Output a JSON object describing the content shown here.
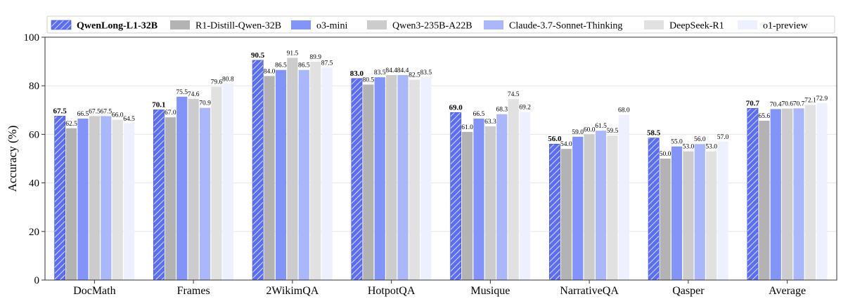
{
  "chart_data": {
    "type": "bar",
    "title": "",
    "xlabel": "",
    "ylabel": "Accuracy (%)",
    "ylim": [
      0,
      100
    ],
    "yticks": [
      "0",
      "20",
      "40",
      "60",
      "80",
      "100"
    ],
    "grid": "horizontal",
    "legend_position": "top",
    "categories": [
      "DocMath",
      "Frames",
      "2WikimQA",
      "HotpotQA",
      "Musique",
      "NarrativeQA",
      "Qasper",
      "Average"
    ],
    "series": [
      {
        "name": "QwenLong-L1-32B",
        "color": "#5b6ef5",
        "hatch": true,
        "bold_labels": true,
        "values": [
          67.5,
          70.1,
          90.5,
          83.0,
          69.0,
          56.0,
          58.5,
          70.7
        ],
        "labels": [
          "67.5",
          "70.1",
          "90.5",
          "83.0",
          "69.0",
          "56.0",
          "58.5",
          "70.7"
        ]
      },
      {
        "name": "R1-Distill-Qwen-32B",
        "color": "#b3b3b3",
        "values": [
          62.5,
          67.0,
          84.0,
          80.5,
          61.0,
          54.0,
          50.0,
          65.6
        ],
        "labels": [
          "62.5",
          "67.0",
          "84.0",
          "80.5",
          "61.0",
          "54.0",
          "50.0",
          "65.6"
        ]
      },
      {
        "name": "o3-mini",
        "color": "#8294fa",
        "values": [
          66.5,
          75.5,
          86.5,
          83.5,
          66.5,
          59.0,
          55.0,
          70.4
        ],
        "labels": [
          "66.5",
          "75.5",
          "86.5",
          "83.5",
          "66.5",
          "59.0",
          "55.0",
          "70.4"
        ]
      },
      {
        "name": "Qwen3-235B-A22B",
        "color": "#cccccc",
        "values": [
          67.5,
          74.6,
          91.5,
          84.4,
          63.3,
          60.0,
          53.0,
          70.6
        ],
        "labels": [
          "67.5",
          "74.6",
          "91.5",
          "84.4",
          "63.3",
          "60.0",
          "53.0",
          "70.6"
        ]
      },
      {
        "name": "Claude-3.7-Sonnet-Thinking",
        "color": "#aab8fb",
        "values": [
          67.5,
          70.9,
          86.5,
          84.4,
          68.3,
          61.5,
          56.0,
          70.7
        ],
        "labels": [
          "67.5",
          "70.9",
          "86.5",
          "84.4",
          "68.3",
          "61.5",
          "56.0",
          "70.7"
        ]
      },
      {
        "name": "DeepSeek-R1",
        "color": "#e1e1e1",
        "values": [
          66.0,
          79.6,
          89.9,
          82.5,
          74.5,
          59.5,
          53.0,
          72.1
        ],
        "labels": [
          "66.0",
          "79.6",
          "89.9",
          "82.5",
          "74.5",
          "59.5",
          "53.0",
          "72.1"
        ]
      },
      {
        "name": "o1-preview",
        "color": "#edf0fe",
        "values": [
          64.5,
          80.8,
          87.5,
          83.5,
          69.2,
          68.0,
          57.0,
          72.9
        ],
        "labels": [
          "64.5",
          "80.8",
          "87.5",
          "83.5",
          "69.2",
          "68.0",
          "57.0",
          "72.9"
        ]
      }
    ]
  }
}
